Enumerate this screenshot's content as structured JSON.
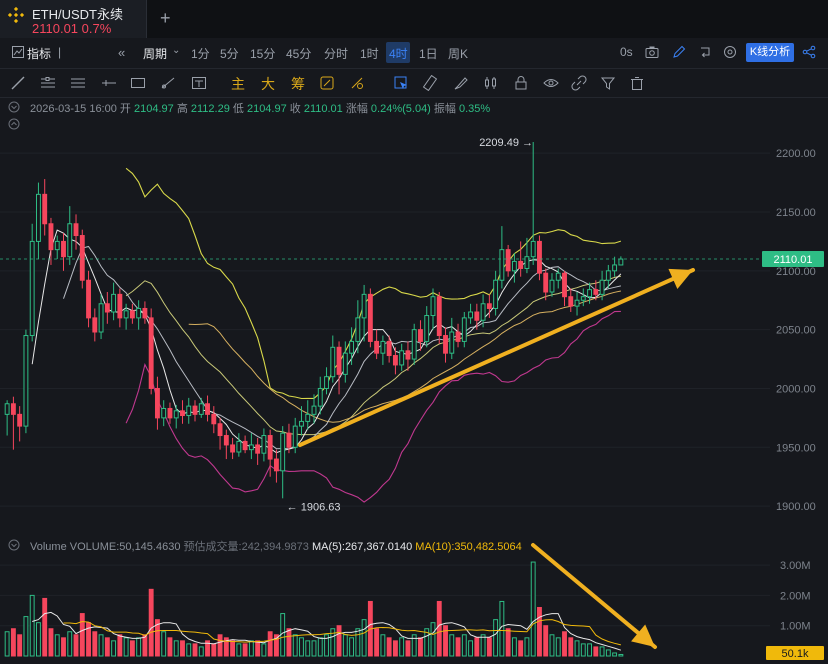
{
  "tab": {
    "title": "ETH/USDT永续",
    "price": "2110.01",
    "change": "0.7%"
  },
  "toolbar": {
    "indicator": "指标",
    "period": "周期",
    "intervals": [
      "1分",
      "5分",
      "15分",
      "45分",
      "分时",
      "1时",
      "4时",
      "1日",
      "周K"
    ],
    "active_interval": "4时",
    "countdown": "0s",
    "analysis_button": "K线分析"
  },
  "drawing_tools": {
    "main": "主",
    "big": "大",
    "chip": "筹"
  },
  "ohlc": {
    "time": "2026-03-15 16:00",
    "open_label": "开",
    "open": "2104.97",
    "high_label": "高",
    "high": "2112.29",
    "low_label": "低",
    "low": "2104.97",
    "close_label": "收",
    "close": "2110.01",
    "change_label": "涨幅",
    "change": "0.24%(5.04)",
    "amp_label": "振幅",
    "amp": "0.35%"
  },
  "volume_legend": {
    "title": "Volume",
    "volume": "VOLUME:50,145.4630",
    "est": "预估成交量:242,394.9873",
    "ma5": "MA(5):267,367.0140",
    "ma10": "MA(10):350,482.5064"
  },
  "colors": {
    "up": "#2ebd85",
    "down": "#f6465d",
    "boll_upper": "#d8d84a",
    "boll_lower": "#c0388f",
    "arrow": "#f0b020",
    "price_tag": "#2ebd85"
  },
  "chart_data": [
    {
      "type": "candlestick",
      "y_axis_ticks": [
        1900,
        1950,
        2000,
        2050,
        2100,
        2150,
        2200
      ],
      "ylim": [
        1878,
        2235
      ],
      "current_price": 2110.01,
      "current_price_label": "2110.01",
      "high_annotation": {
        "value": 2209.49,
        "label": "2209.49",
        "index": 84
      },
      "low_annotation": {
        "value": 1906.63,
        "label": "1906.63",
        "index": 44
      },
      "candles": [
        [
          1978,
          1987,
          1960,
          1990
        ],
        [
          1987,
          1978,
          1948,
          1993
        ],
        [
          1978,
          1968,
          1955,
          1985
        ],
        [
          1968,
          2045,
          1962,
          2050
        ],
        [
          2045,
          2125,
          2040,
          2140
        ],
        [
          2125,
          2165,
          2110,
          2175
        ],
        [
          2165,
          2140,
          2130,
          2178
        ],
        [
          2140,
          2118,
          2105,
          2145
        ],
        [
          2118,
          2125,
          2110,
          2130
        ],
        [
          2125,
          2112,
          2100,
          2132
        ],
        [
          2112,
          2140,
          2105,
          2155
        ],
        [
          2140,
          2130,
          2118,
          2148
        ],
        [
          2130,
          2092,
          2085,
          2135
        ],
        [
          2092,
          2060,
          2052,
          2100
        ],
        [
          2060,
          2048,
          2040,
          2068
        ],
        [
          2048,
          2072,
          2042,
          2080
        ],
        [
          2072,
          2065,
          2055,
          2082
        ],
        [
          2065,
          2080,
          2058,
          2090
        ],
        [
          2080,
          2060,
          2052,
          2085
        ],
        [
          2060,
          2066,
          2050,
          2072
        ],
        [
          2066,
          2060,
          2055,
          2072
        ],
        [
          2060,
          2068,
          2050,
          2075
        ],
        [
          2068,
          2060,
          2055,
          2074
        ],
        [
          2060,
          2000,
          1995,
          2068
        ],
        [
          2000,
          1975,
          1965,
          2010
        ],
        [
          1975,
          1983,
          1968,
          1990
        ],
        [
          1983,
          1975,
          1970,
          1988
        ],
        [
          1975,
          1981,
          1966,
          1986
        ],
        [
          1981,
          1977,
          1970,
          1990
        ],
        [
          1977,
          1985,
          1970,
          1992
        ],
        [
          1985,
          1978,
          1972,
          1990
        ],
        [
          1978,
          1987,
          1975,
          1992
        ],
        [
          1987,
          1978,
          1972,
          1994
        ],
        [
          1978,
          1970,
          1962,
          1985
        ],
        [
          1970,
          1960,
          1948,
          1975
        ],
        [
          1960,
          1952,
          1940,
          1965
        ],
        [
          1952,
          1946,
          1940,
          1958
        ],
        [
          1946,
          1955,
          1942,
          1962
        ],
        [
          1955,
          1948,
          1945,
          1960
        ],
        [
          1948,
          1952,
          1940,
          1962
        ],
        [
          1952,
          1945,
          1935,
          1958
        ],
        [
          1945,
          1960,
          1938,
          1966
        ],
        [
          1960,
          1940,
          1925,
          1965
        ],
        [
          1940,
          1930,
          1920,
          1948
        ],
        [
          1930,
          1962,
          1906.63,
          1968
        ],
        [
          1962,
          1950,
          1945,
          1970
        ],
        [
          1950,
          1968,
          1945,
          1975
        ],
        [
          1968,
          1972,
          1960,
          1985
        ],
        [
          1972,
          1978,
          1965,
          1990
        ],
        [
          1978,
          1985,
          1970,
          1995
        ],
        [
          1985,
          2000,
          1978,
          2010
        ],
        [
          2000,
          2010,
          1995,
          2018
        ],
        [
          2010,
          2035,
          2005,
          2045
        ],
        [
          2035,
          2012,
          1995,
          2040
        ],
        [
          2012,
          2030,
          2005,
          2040
        ],
        [
          2030,
          2040,
          2020,
          2052
        ],
        [
          2040,
          2060,
          2030,
          2075
        ],
        [
          2060,
          2080,
          2040,
          2088
        ],
        [
          2080,
          2040,
          2035,
          2085
        ],
        [
          2040,
          2030,
          2025,
          2050
        ],
        [
          2030,
          2040,
          2020,
          2045
        ],
        [
          2040,
          2028,
          2022,
          2045
        ],
        [
          2028,
          2020,
          2012,
          2035
        ],
        [
          2020,
          2032,
          2015,
          2038
        ],
        [
          2032,
          2025,
          2015,
          2040
        ],
        [
          2025,
          2050,
          2020,
          2055
        ],
        [
          2050,
          2040,
          2032,
          2058
        ],
        [
          2040,
          2062,
          2035,
          2070
        ],
        [
          2062,
          2078,
          2050,
          2085
        ],
        [
          2078,
          2045,
          2038,
          2082
        ],
        [
          2045,
          2030,
          2022,
          2052
        ],
        [
          2030,
          2048,
          2025,
          2060
        ],
        [
          2048,
          2040,
          2035,
          2055
        ],
        [
          2040,
          2060,
          2035,
          2065
        ],
        [
          2060,
          2065,
          2055,
          2072
        ],
        [
          2065,
          2058,
          2050,
          2072
        ],
        [
          2058,
          2072,
          2052,
          2080
        ],
        [
          2072,
          2068,
          2060,
          2080
        ],
        [
          2068,
          2092,
          2062,
          2100
        ],
        [
          2092,
          2118,
          2085,
          2138
        ],
        [
          2118,
          2100,
          2095,
          2122
        ],
        [
          2100,
          2108,
          2090,
          2115
        ],
        [
          2108,
          2102,
          2095,
          2125
        ],
        [
          2102,
          2112,
          2098,
          2128
        ],
        [
          2112,
          2125,
          2105,
          2209.49
        ],
        [
          2125,
          2098,
          2092,
          2130
        ],
        [
          2098,
          2082,
          2075,
          2102
        ],
        [
          2082,
          2092,
          2078,
          2098
        ],
        [
          2092,
          2098,
          2085,
          2102
        ],
        [
          2098,
          2078,
          2070,
          2100
        ],
        [
          2078,
          2070,
          2065,
          2085
        ],
        [
          2070,
          2075,
          2062,
          2082
        ],
        [
          2075,
          2078,
          2070,
          2085
        ],
        [
          2078,
          2084,
          2072,
          2090
        ],
        [
          2084,
          2080,
          2075,
          2092
        ],
        [
          2080,
          2092,
          2075,
          2100
        ],
        [
          2092,
          2100,
          2085,
          2105
        ],
        [
          2100,
          2105,
          2095,
          2112
        ],
        [
          2104.97,
          2110.01,
          2104.97,
          2112.29
        ]
      ]
    },
    {
      "type": "bar",
      "title": "Volume",
      "y_axis_ticks_label": [
        "1.00M",
        "2.00M",
        "3.00M"
      ],
      "y_axis_ticks": [
        1000000,
        2000000,
        3000000
      ],
      "ylim": [
        0,
        3300000
      ],
      "current_label": "50.1k",
      "values": [
        800000,
        900000,
        700000,
        1300000,
        2000000,
        1100000,
        1900000,
        900000,
        700000,
        600000,
        800000,
        700000,
        1400000,
        1100000,
        800000,
        700000,
        600000,
        500000,
        700000,
        600000,
        500000,
        600000,
        700000,
        2200000,
        1200000,
        800000,
        600000,
        500000,
        500000,
        400000,
        400000,
        300000,
        500000,
        400000,
        700000,
        600000,
        500000,
        400000,
        400000,
        500000,
        500000,
        400000,
        800000,
        700000,
        1400000,
        900000,
        700000,
        600000,
        500000,
        500000,
        600000,
        700000,
        900000,
        1000000,
        700000,
        600000,
        900000,
        1200000,
        1800000,
        900000,
        700000,
        600000,
        500000,
        600000,
        500000,
        700000,
        600000,
        900000,
        1100000,
        1800000,
        1000000,
        700000,
        600000,
        700000,
        500000,
        600000,
        700000,
        600000,
        1200000,
        1800000,
        900000,
        600000,
        500000,
        600000,
        3100000,
        1600000,
        1000000,
        700000,
        600000,
        800000,
        600000,
        500000,
        400000,
        400000,
        300000,
        300000,
        200000,
        100000,
        50100
      ]
    }
  ]
}
